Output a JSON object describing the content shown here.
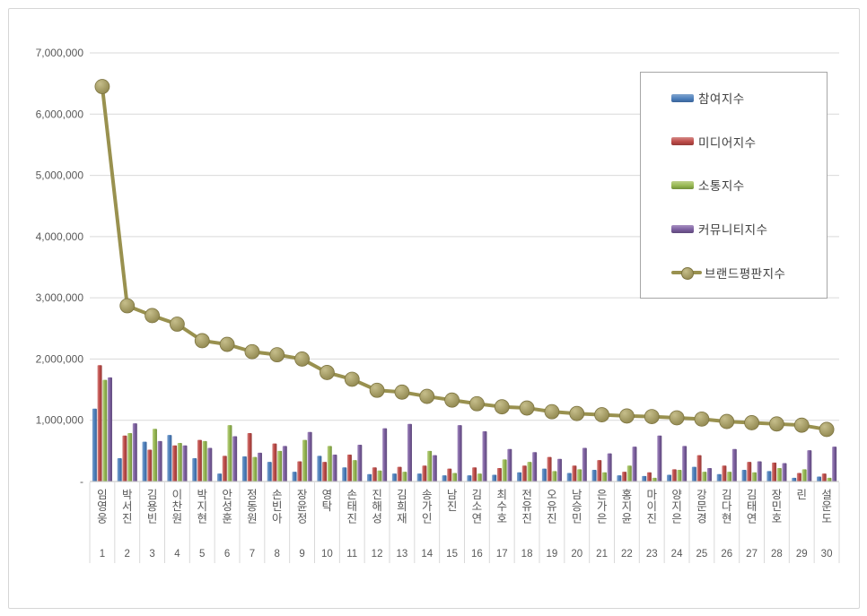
{
  "chart_data": {
    "type": "bar",
    "subtype": "clustered-bar-with-line-combo",
    "title": "",
    "categories": [
      "임영웅",
      "박서진",
      "김용빈",
      "이찬원",
      "박지현",
      "안성훈",
      "정동원",
      "손빈아",
      "장윤정",
      "영탁",
      "손태진",
      "진해성",
      "김희재",
      "송가인",
      "남진",
      "김소연",
      "최수호",
      "전유진",
      "오유진",
      "남승민",
      "은가은",
      "홍지윤",
      "마이진",
      "양지은",
      "강문경",
      "김다현",
      "김태연",
      "장민호",
      "린",
      "설운도"
    ],
    "ranks": [
      "1",
      "2",
      "3",
      "4",
      "5",
      "6",
      "7",
      "8",
      "9",
      "10",
      "11",
      "12",
      "13",
      "14",
      "15",
      "16",
      "17",
      "18",
      "19",
      "20",
      "21",
      "22",
      "23",
      "24",
      "25",
      "26",
      "27",
      "28",
      "29",
      "30"
    ],
    "series": [
      {
        "key": "participation-index",
        "name": "참여지수",
        "type": "bar",
        "color": "#4E81BD",
        "color_light": "#82A5CE",
        "color_dark": "#3A6298",
        "values": [
          1190000,
          380000,
          650000,
          760000,
          380000,
          130000,
          410000,
          320000,
          160000,
          420000,
          230000,
          120000,
          130000,
          130000,
          100000,
          100000,
          110000,
          150000,
          210000,
          140000,
          190000,
          100000,
          90000,
          110000,
          240000,
          120000,
          190000,
          170000,
          60000,
          80000
        ]
      },
      {
        "key": "media-index",
        "name": "미디어지수",
        "type": "bar",
        "color": "#BE4B48",
        "color_light": "#D58A87",
        "color_dark": "#943A37",
        "values": [
          1900000,
          750000,
          520000,
          590000,
          680000,
          420000,
          790000,
          620000,
          330000,
          320000,
          440000,
          230000,
          240000,
          260000,
          210000,
          230000,
          220000,
          260000,
          400000,
          260000,
          350000,
          160000,
          150000,
          200000,
          430000,
          260000,
          320000,
          310000,
          140000,
          130000
        ]
      },
      {
        "key": "communication-index",
        "name": "소통지수",
        "type": "bar",
        "color": "#98B954",
        "color_light": "#BDD189",
        "color_dark": "#71903B",
        "values": [
          1660000,
          790000,
          860000,
          630000,
          660000,
          920000,
          400000,
          500000,
          680000,
          580000,
          350000,
          180000,
          160000,
          500000,
          140000,
          130000,
          360000,
          320000,
          170000,
          200000,
          150000,
          260000,
          60000,
          190000,
          160000,
          160000,
          150000,
          220000,
          200000,
          60000
        ]
      },
      {
        "key": "community-index",
        "name": "커뮤니티지수",
        "type": "bar",
        "color": "#7D60A0",
        "color_light": "#A891C2",
        "color_dark": "#5D477A",
        "values": [
          1700000,
          950000,
          660000,
          590000,
          550000,
          740000,
          470000,
          580000,
          810000,
          440000,
          600000,
          870000,
          940000,
          430000,
          920000,
          820000,
          530000,
          480000,
          370000,
          550000,
          460000,
          570000,
          750000,
          580000,
          220000,
          530000,
          330000,
          300000,
          510000,
          570000
        ]
      },
      {
        "key": "brand-reputation-index",
        "name": "브랜드평판지수",
        "type": "line",
        "color": "#99914F",
        "marker_light": "#C6BE8B",
        "marker_dark": "#8A8148",
        "marker_stroke": "#7d7440",
        "values": [
          6450000,
          2870000,
          2710000,
          2570000,
          2300000,
          2240000,
          2120000,
          2070000,
          2000000,
          1780000,
          1670000,
          1490000,
          1460000,
          1390000,
          1330000,
          1270000,
          1220000,
          1200000,
          1140000,
          1110000,
          1090000,
          1070000,
          1060000,
          1040000,
          1020000,
          980000,
          960000,
          940000,
          920000,
          850000
        ]
      }
    ],
    "y_axis": {
      "min": 0,
      "max": 7000000,
      "tick_interval": 1000000,
      "ticks": [
        {
          "value": 7000000,
          "label": "7,000,000"
        },
        {
          "value": 6000000,
          "label": "6,000,000"
        },
        {
          "value": 5000000,
          "label": "5,000,000"
        },
        {
          "value": 4000000,
          "label": "4,000,000"
        },
        {
          "value": 3000000,
          "label": "3,000,000"
        },
        {
          "value": 2000000,
          "label": "2,000,000"
        },
        {
          "value": 1000000,
          "label": "1,000,000"
        },
        {
          "value": 0,
          "label": "-"
        }
      ]
    },
    "grid": true,
    "legend_position": "right-top-inside",
    "colors": {
      "gridline": "#d9d9d9",
      "axis_line": "#bfbfbf",
      "axis_text": "#595959",
      "separator": "#d9d9d9",
      "legend_border": "#a6a6a6",
      "frame_border": "#d6d6d6",
      "background": "#ffffff"
    }
  }
}
